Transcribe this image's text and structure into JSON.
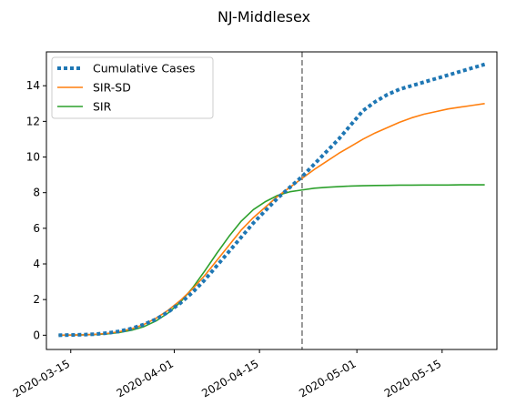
{
  "chart_data": {
    "type": "line",
    "title": "NJ-Middlesex",
    "xlabel": "",
    "ylabel": "",
    "x_axis": {
      "kind": "date",
      "range": [
        "2020-03-11",
        "2020-05-24"
      ],
      "ticks": [
        "2020-03-15",
        "2020-04-01",
        "2020-04-15",
        "2020-05-01",
        "2020-05-15"
      ]
    },
    "y_axis": {
      "range": [
        -0.8,
        15.9
      ],
      "ticks": [
        0,
        2,
        4,
        6,
        8,
        10,
        12,
        14
      ]
    },
    "grid": false,
    "legend": {
      "placement": "top-left",
      "entries": [
        "Cumulative Cases",
        "SIR-SD",
        "SIR"
      ]
    },
    "vertical_line": {
      "x": "2020-04-22",
      "style": "dashed",
      "color": "#7f7f7f"
    },
    "series": [
      {
        "name": "Cumulative Cases",
        "color": "#1f77b4",
        "style": "dotted",
        "x": [
          "2020-03-13",
          "2020-03-15",
          "2020-03-17",
          "2020-03-19",
          "2020-03-21",
          "2020-03-23",
          "2020-03-25",
          "2020-03-27",
          "2020-03-29",
          "2020-03-31",
          "2020-04-02",
          "2020-04-04",
          "2020-04-06",
          "2020-04-08",
          "2020-04-10",
          "2020-04-12",
          "2020-04-14",
          "2020-04-16",
          "2020-04-18",
          "2020-04-20",
          "2020-04-22",
          "2020-04-24",
          "2020-04-26",
          "2020-04-28",
          "2020-04-30",
          "2020-05-02",
          "2020-05-04",
          "2020-05-06",
          "2020-05-08",
          "2020-05-10",
          "2020-05-12",
          "2020-05-14",
          "2020-05-16",
          "2020-05-18",
          "2020-05-20",
          "2020-05-22"
        ],
        "y": [
          0.0,
          0.01,
          0.03,
          0.06,
          0.12,
          0.22,
          0.38,
          0.6,
          0.9,
          1.3,
          1.8,
          2.4,
          3.1,
          3.9,
          4.7,
          5.5,
          6.3,
          7.0,
          7.7,
          8.3,
          8.9,
          9.6,
          10.3,
          11.0,
          11.8,
          12.6,
          13.1,
          13.5,
          13.8,
          14.0,
          14.2,
          14.4,
          14.6,
          14.8,
          15.0,
          15.2
        ]
      },
      {
        "name": "SIR-SD",
        "color": "#ff7f0e",
        "style": "solid",
        "x": [
          "2020-03-13",
          "2020-03-15",
          "2020-03-17",
          "2020-03-19",
          "2020-03-21",
          "2020-03-23",
          "2020-03-25",
          "2020-03-27",
          "2020-03-29",
          "2020-03-31",
          "2020-04-02",
          "2020-04-04",
          "2020-04-06",
          "2020-04-08",
          "2020-04-10",
          "2020-04-12",
          "2020-04-14",
          "2020-04-16",
          "2020-04-18",
          "2020-04-20",
          "2020-04-22",
          "2020-04-24",
          "2020-04-26",
          "2020-04-28",
          "2020-04-30",
          "2020-05-02",
          "2020-05-04",
          "2020-05-06",
          "2020-05-08",
          "2020-05-10",
          "2020-05-12",
          "2020-05-14",
          "2020-05-16",
          "2020-05-18",
          "2020-05-20",
          "2020-05-22"
        ],
        "y": [
          0.0,
          0.01,
          0.02,
          0.05,
          0.1,
          0.2,
          0.36,
          0.6,
          0.95,
          1.4,
          1.95,
          2.6,
          3.35,
          4.2,
          5.05,
          5.9,
          6.6,
          7.2,
          7.8,
          8.3,
          8.8,
          9.3,
          9.75,
          10.2,
          10.6,
          11.0,
          11.35,
          11.65,
          11.95,
          12.2,
          12.4,
          12.55,
          12.7,
          12.8,
          12.9,
          13.0
        ]
      },
      {
        "name": "SIR",
        "color": "#2ca02c",
        "style": "solid",
        "x": [
          "2020-03-13",
          "2020-03-15",
          "2020-03-17",
          "2020-03-19",
          "2020-03-21",
          "2020-03-23",
          "2020-03-25",
          "2020-03-27",
          "2020-03-29",
          "2020-03-31",
          "2020-04-02",
          "2020-04-04",
          "2020-04-06",
          "2020-04-08",
          "2020-04-10",
          "2020-04-12",
          "2020-04-14",
          "2020-04-16",
          "2020-04-18",
          "2020-04-20",
          "2020-04-22",
          "2020-04-24",
          "2020-04-26",
          "2020-04-28",
          "2020-04-30",
          "2020-05-02",
          "2020-05-04",
          "2020-05-06",
          "2020-05-08",
          "2020-05-10",
          "2020-05-12",
          "2020-05-14",
          "2020-05-16",
          "2020-05-18",
          "2020-05-20",
          "2020-05-22"
        ],
        "y": [
          0.0,
          0.01,
          0.02,
          0.04,
          0.08,
          0.15,
          0.28,
          0.48,
          0.8,
          1.25,
          1.85,
          2.65,
          3.6,
          4.6,
          5.55,
          6.4,
          7.05,
          7.5,
          7.85,
          8.05,
          8.15,
          8.25,
          8.3,
          8.34,
          8.37,
          8.39,
          8.4,
          8.41,
          8.42,
          8.42,
          8.43,
          8.43,
          8.43,
          8.44,
          8.44,
          8.44
        ]
      }
    ]
  }
}
